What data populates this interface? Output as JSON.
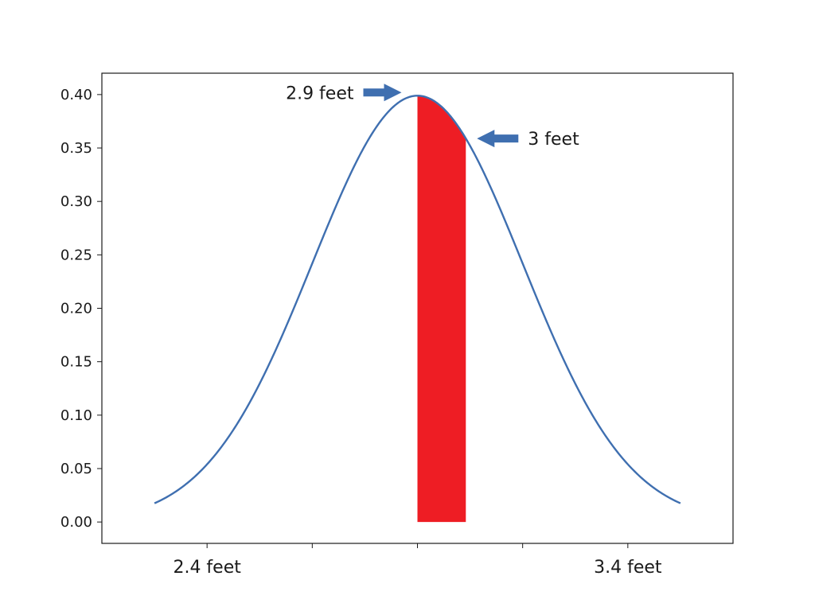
{
  "chart_data": {
    "type": "line",
    "xlim": [
      -3.0,
      3.0
    ],
    "ylim": [
      -0.02,
      0.42
    ],
    "y_ticks": [
      0.0,
      0.05,
      0.1,
      0.15,
      0.2,
      0.25,
      0.3,
      0.35,
      0.4
    ],
    "y_tick_labels": [
      "0.00",
      "0.05",
      "0.10",
      "0.15",
      "0.20",
      "0.25",
      "0.30",
      "0.35",
      "0.40"
    ],
    "x_ticks": [
      -2,
      -1,
      0,
      1,
      2
    ],
    "x_tick_labels": [
      "",
      "",
      "",
      "",
      ""
    ],
    "grid": false,
    "series": [
      {
        "distribution": "normal",
        "mean": 0,
        "std": 1,
        "x_range": [
          -2.5,
          2.5
        ],
        "color": "#3f6fb0"
      }
    ],
    "shaded_region": {
      "x_from": 0.0,
      "x_to": 0.46,
      "color": "#ee1d24"
    },
    "x_end_labels": [
      {
        "text": "2.4 feet",
        "x": -2.0
      },
      {
        "text": "3.4 feet",
        "x": 2.0
      }
    ],
    "annotations": [
      {
        "text": "2.9 feet",
        "points_to_x": 0.0,
        "direction": "right"
      },
      {
        "text": "3 feet",
        "points_to_x": 0.46,
        "direction": "left"
      }
    ],
    "arrow_color": "#3f6fb0"
  }
}
